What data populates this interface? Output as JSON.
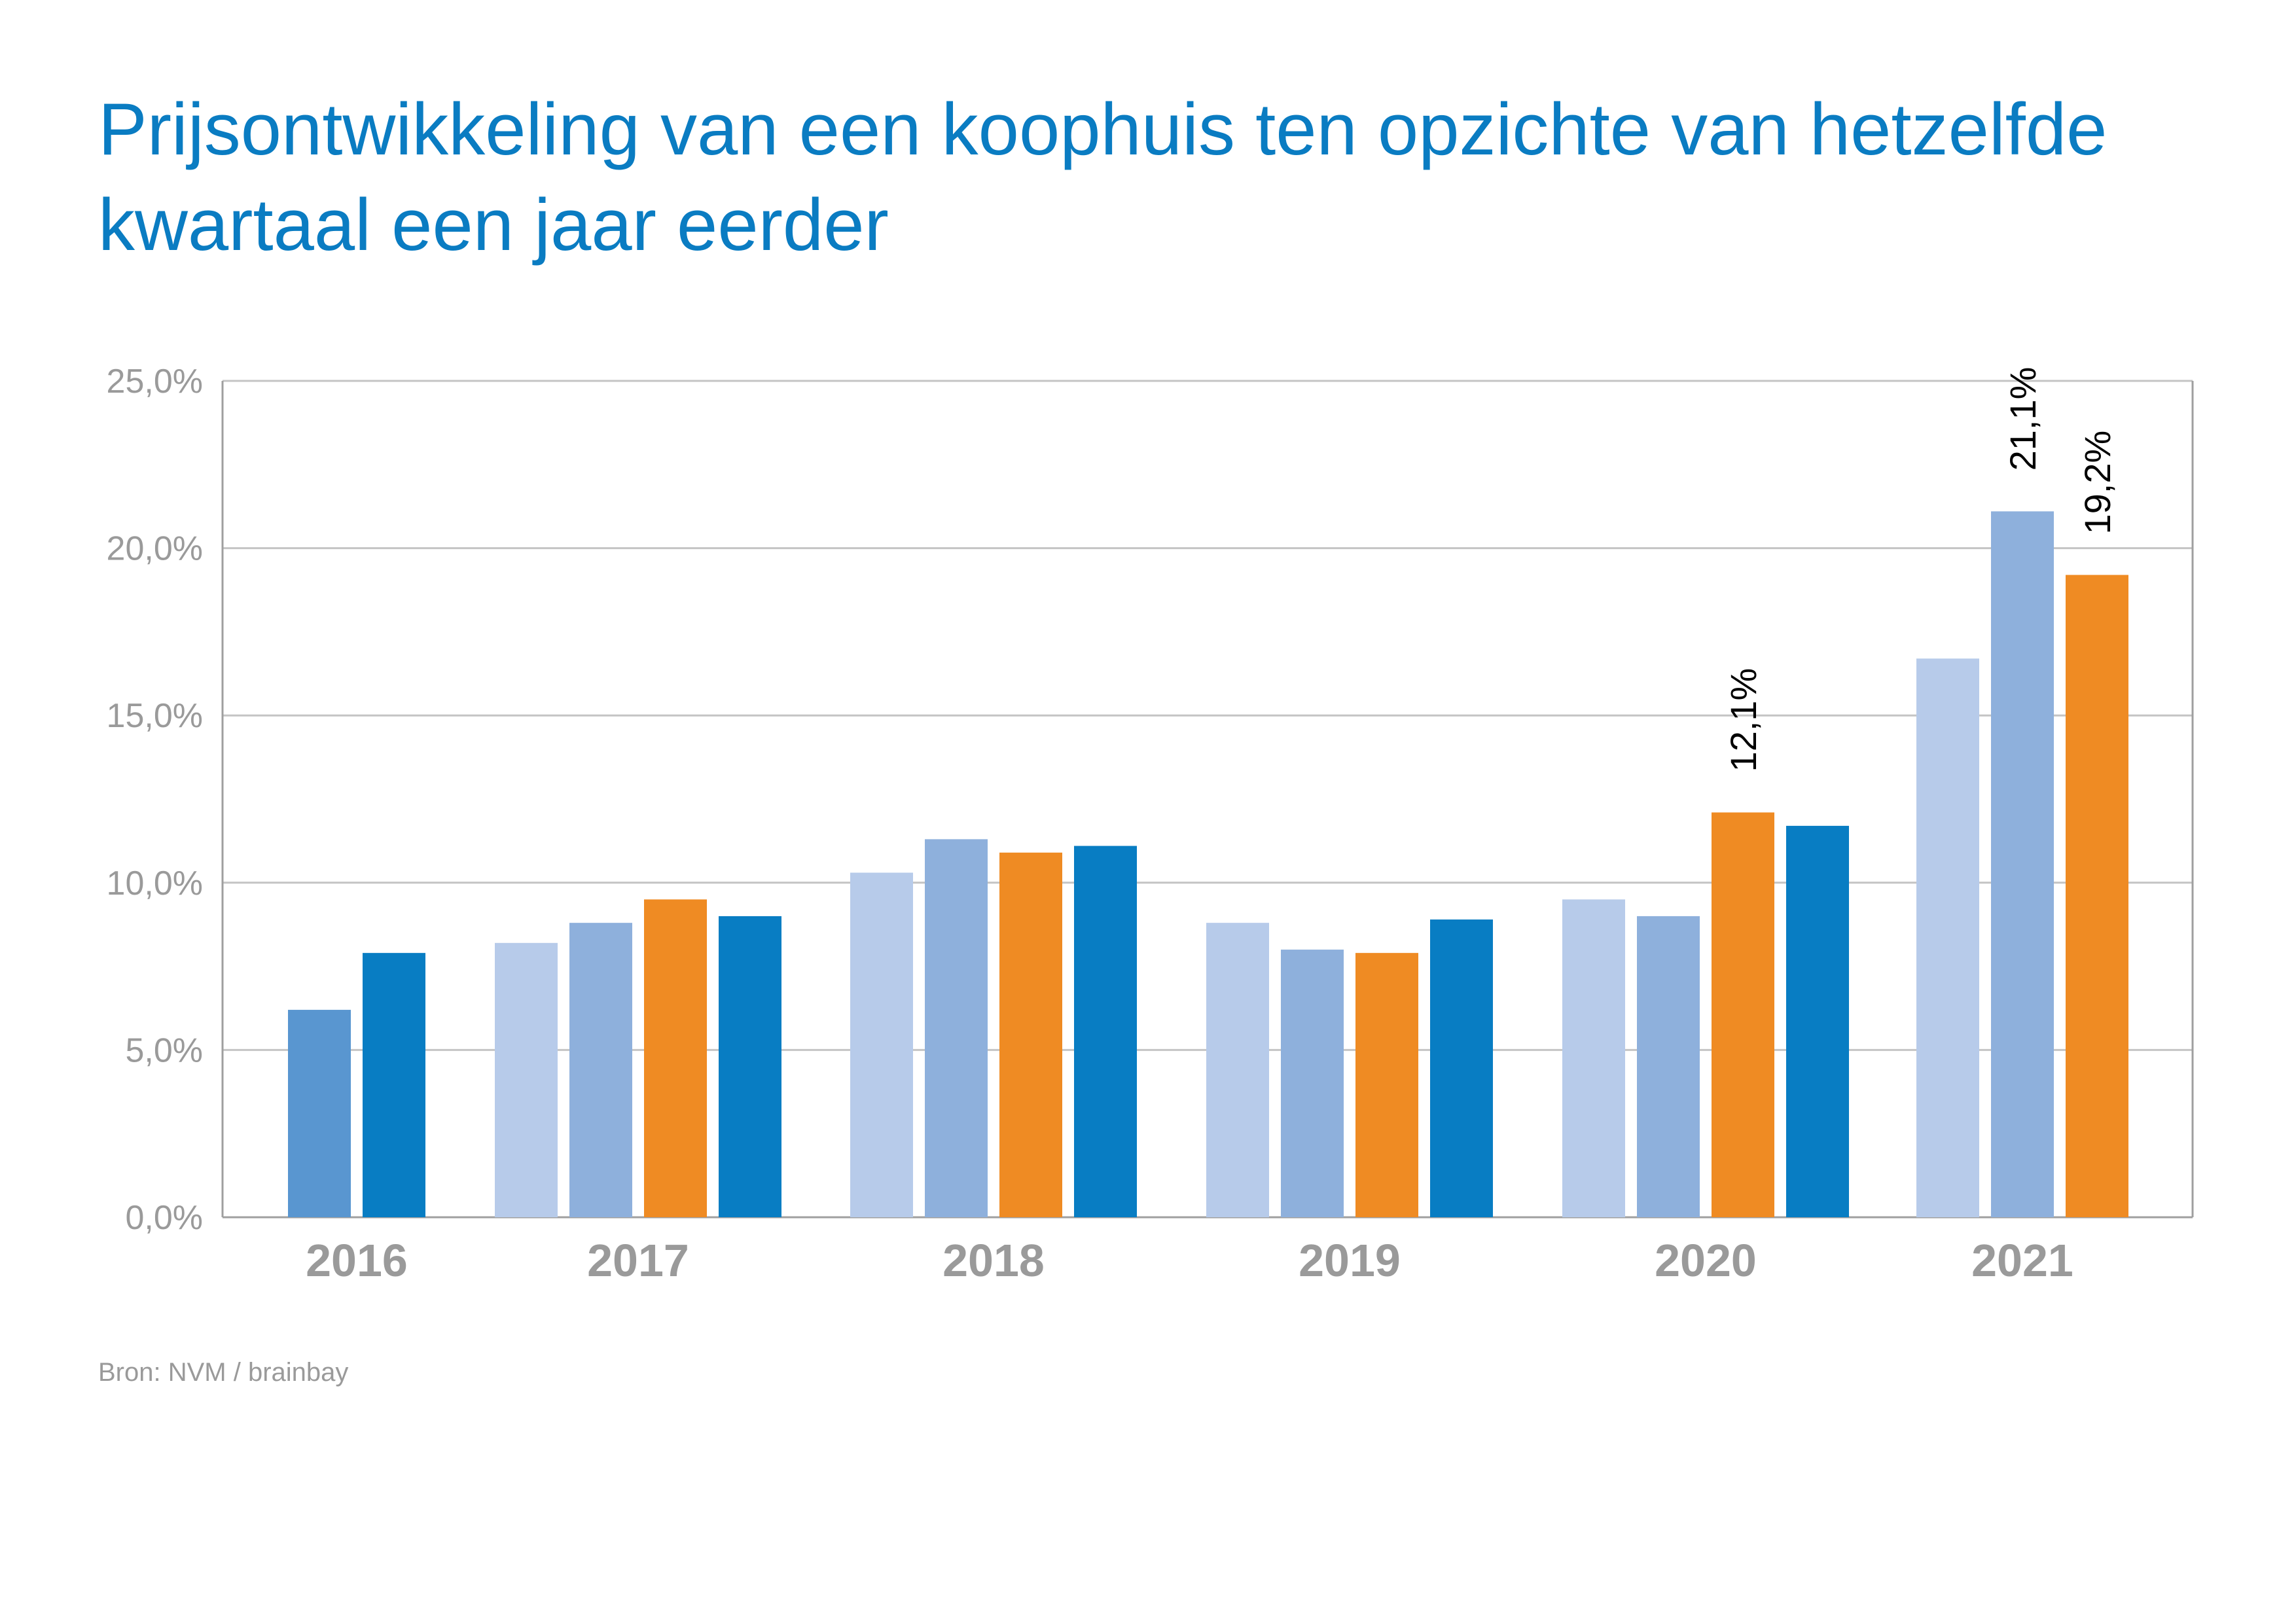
{
  "header": {
    "title_line1": "Prijsontwikkeling van een koophuis ten opzichte van hetzelfde",
    "title_line2": "kwartaal een jaar eerder"
  },
  "footer": {
    "source": "Bron: NVM / brainbay"
  },
  "chart_data": {
    "type": "bar",
    "title": "Prijsontwikkeling van een koophuis ten opzichte van hetzelfde kwartaal een jaar eerder",
    "xlabel": "",
    "ylabel": "",
    "ylim": [
      0,
      25
    ],
    "y_ticks": [
      "0,0%",
      "5,0%",
      "10,0%",
      "15,0%",
      "20,0%",
      "25,0%"
    ],
    "y_tick_values": [
      0,
      5,
      10,
      15,
      20,
      25
    ],
    "grid": true,
    "legend": "none",
    "categories": [
      "2016",
      "2017",
      "2018",
      "2019",
      "2020",
      "2021"
    ],
    "groups": [
      {
        "category": "2016",
        "bars": [
          {
            "value": 6.2,
            "color": "#5996d0"
          },
          {
            "value": 7.9,
            "color": "#087dc3"
          }
        ]
      },
      {
        "category": "2017",
        "bars": [
          {
            "value": 8.2,
            "color": "#b7cbea"
          },
          {
            "value": 8.8,
            "color": "#8eb0dc"
          },
          {
            "value": 9.5,
            "color": "#ef8b23"
          },
          {
            "value": 9.0,
            "color": "#087dc3"
          }
        ]
      },
      {
        "category": "2018",
        "bars": [
          {
            "value": 10.3,
            "color": "#b7cbea"
          },
          {
            "value": 11.3,
            "color": "#8eb0dc"
          },
          {
            "value": 10.9,
            "color": "#ef8b23"
          },
          {
            "value": 11.1,
            "color": "#087dc3"
          }
        ]
      },
      {
        "category": "2019",
        "bars": [
          {
            "value": 8.8,
            "color": "#b7cbea"
          },
          {
            "value": 8.0,
            "color": "#8eb0dc"
          },
          {
            "value": 7.9,
            "color": "#ef8b23"
          },
          {
            "value": 8.9,
            "color": "#087dc3"
          }
        ]
      },
      {
        "category": "2020",
        "bars": [
          {
            "value": 9.5,
            "color": "#b7cbea"
          },
          {
            "value": 9.0,
            "color": "#8eb0dc"
          },
          {
            "value": 12.1,
            "color": "#ef8b23",
            "label": "12,1%"
          },
          {
            "value": 11.7,
            "color": "#087dc3"
          }
        ]
      },
      {
        "category": "2021",
        "bars": [
          {
            "value": 16.7,
            "color": "#b7cbea"
          },
          {
            "value": 21.1,
            "color": "#8eb0dc",
            "label": "21,1%"
          },
          {
            "value": 19.2,
            "color": "#ef8b23",
            "label": "19,2%"
          }
        ]
      }
    ]
  }
}
